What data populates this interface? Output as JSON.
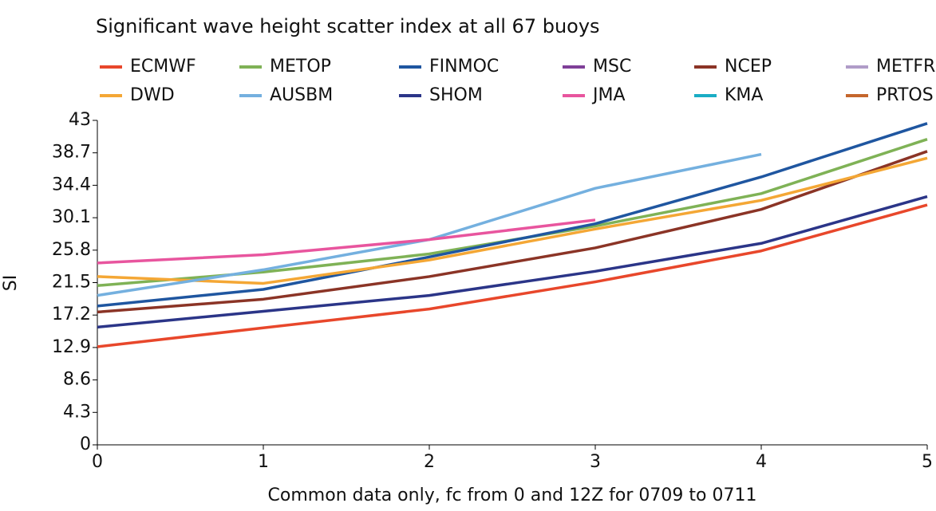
{
  "chart_data": {
    "type": "line",
    "title": "Significant wave height scatter index at all 67 buoys",
    "x_label": "Common data only, fc from 0 and 12Z for 0709 to 0711",
    "y_label": "SI",
    "x": [
      0,
      1,
      2,
      3,
      4,
      5
    ],
    "xlim": [
      0,
      5
    ],
    "xticks": [
      0,
      1,
      2,
      3,
      4,
      5
    ],
    "ylim": [
      0,
      43
    ],
    "yticks": [
      0,
      4.3,
      8.6,
      12.9,
      17.2,
      21.5,
      25.8,
      30.1,
      34.4,
      38.7,
      43
    ],
    "series": [
      {
        "name": "ECMWF",
        "color": "#e8472b",
        "values": [
          13.0,
          15.5,
          18.0,
          21.6,
          25.7,
          31.8
        ]
      },
      {
        "name": "METOP",
        "color": "#7fb256",
        "values": [
          21.1,
          22.9,
          25.3,
          29.0,
          33.3,
          40.5
        ]
      },
      {
        "name": "FINMOC",
        "color": "#1f56a0",
        "values": [
          18.4,
          20.6,
          24.9,
          29.3,
          35.5,
          42.6
        ]
      },
      {
        "name": "MSC",
        "color": "#7f3f98",
        "values": [
          null,
          null,
          null,
          null,
          null,
          null
        ]
      },
      {
        "name": "NCEP",
        "color": "#8b3426",
        "values": [
          17.6,
          19.3,
          22.3,
          26.1,
          31.2,
          38.9
        ]
      },
      {
        "name": "METFR",
        "color": "#b09cc8",
        "values": [
          null,
          null,
          null,
          null,
          null,
          null
        ]
      },
      {
        "name": "DWD",
        "color": "#f4a735",
        "values": [
          22.3,
          21.4,
          24.5,
          28.6,
          32.4,
          38.0
        ]
      },
      {
        "name": "AUSBM",
        "color": "#74b0df",
        "values": [
          19.8,
          23.2,
          27.2,
          34.0,
          38.5,
          null
        ]
      },
      {
        "name": "SHOM",
        "color": "#2b3588",
        "values": [
          15.6,
          17.7,
          19.8,
          23.0,
          26.7,
          32.9
        ]
      },
      {
        "name": "JMA",
        "color": "#e8559e",
        "values": [
          24.1,
          25.2,
          27.2,
          29.8,
          null,
          null
        ]
      },
      {
        "name": "KMA",
        "color": "#1aadc5",
        "values": [
          null,
          null,
          null,
          null,
          null,
          null
        ]
      },
      {
        "name": "PRTOS",
        "color": "#c5662c",
        "values": [
          null,
          null,
          null,
          null,
          null,
          null
        ]
      }
    ]
  }
}
